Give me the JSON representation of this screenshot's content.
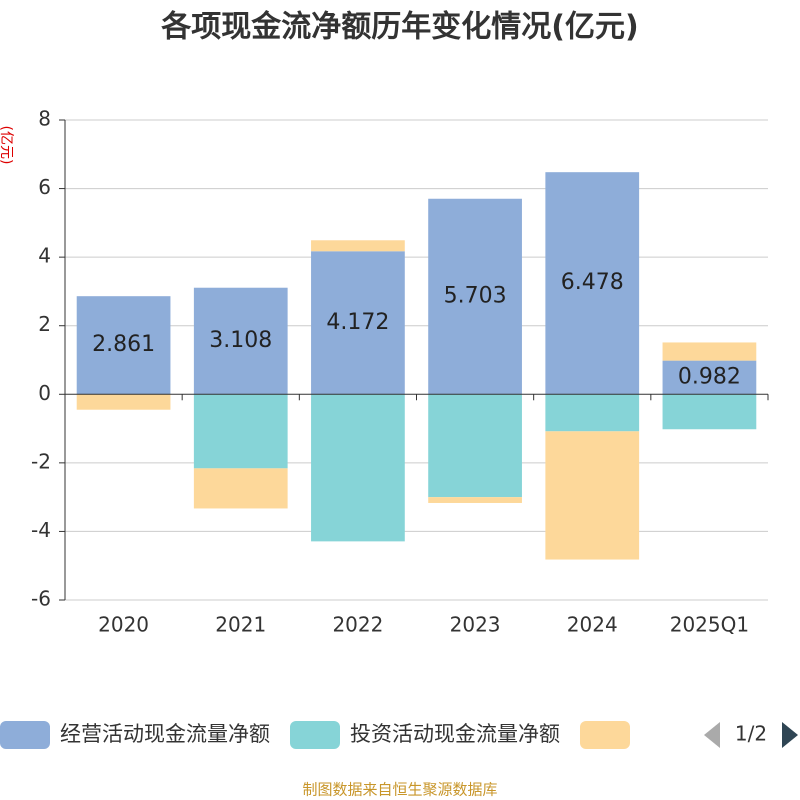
{
  "chart_data": {
    "type": "bar",
    "stacked": true,
    "title": "各项现金流净额历年变化情况(亿元)",
    "y_label": "(亿元)",
    "categories": [
      "2020",
      "2021",
      "2022",
      "2023",
      "2024",
      "2025Q1"
    ],
    "series": [
      {
        "name": "经营活动现金流量净额",
        "color": "#8eadd9",
        "values": [
          2.861,
          3.108,
          4.172,
          5.703,
          6.478,
          0.982
        ],
        "labels": true
      },
      {
        "name": "投资活动现金流量净额",
        "color": "#86d4d7",
        "values": [
          0,
          -2.16,
          -4.29,
          -3.0,
          -1.08,
          -1.02
        ]
      },
      {
        "color": "#fdd89a",
        "values": [
          -0.45,
          -1.17,
          0.32,
          -0.17,
          -3.74,
          0.53
        ]
      }
    ],
    "ylim": [
      -6,
      8
    ],
    "yticks": [
      -6,
      -4,
      -2,
      0,
      2,
      4,
      6,
      8
    ],
    "grid": true,
    "legend_page": "1/2",
    "source": "制图数据来自恒生聚源数据库"
  }
}
